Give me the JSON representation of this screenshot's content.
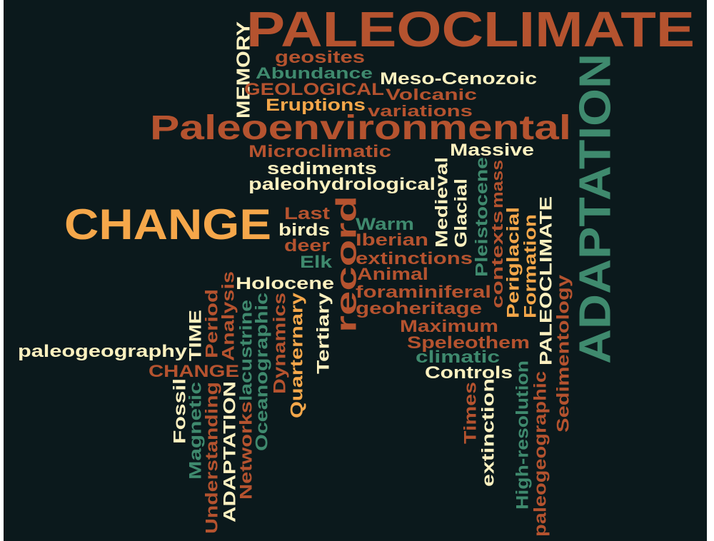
{
  "words": [
    "PALEOCLIMATE",
    "MEMORY",
    "geosites",
    "Abundance",
    "Meso-Cenozoic",
    "GEOLOGICAL",
    "Volcanic",
    "Eruptions",
    "variations",
    "Paleoenvironmental",
    "ADAPTATION",
    "Microclimatic",
    "Massive",
    "sediments",
    "paleohydrological",
    "Medieval",
    "Glacial",
    "Pleistocene",
    "mass",
    "contexts",
    "CHANGE",
    "Last",
    "birds",
    "deer",
    "Elk",
    "record",
    "Warm",
    "Iberian",
    "extinctions",
    "Animal",
    "foraminiferal",
    "geoheritage",
    "Maximum",
    "Speleothem",
    "climatic",
    "Controls",
    "Periglacial",
    "Formation",
    "PALEOCLIMATE",
    "Sedimentology",
    "Holocene",
    "Tertiary",
    "Quarternary",
    "Dynamics",
    "Oceanographic",
    "lacustrine",
    "Networks",
    "Analysis",
    "ADAPTATION",
    "Period",
    "Understanding",
    "TIME",
    "Magnetic",
    "Fossil",
    "paleogeography",
    "CHANGE",
    "Times",
    "extinction",
    "High-resolution",
    "paleogeographic"
  ]
}
